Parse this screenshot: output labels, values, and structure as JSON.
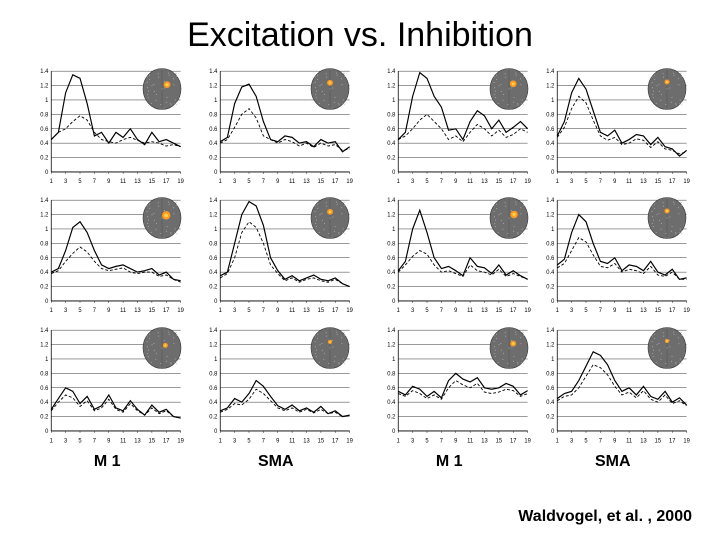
{
  "title": "Excitation vs. Inhibition",
  "citation": "Waldvogel, et al. , 2000",
  "column_labels": [
    "M 1",
    "SMA",
    "M 1",
    "SMA"
  ],
  "chart_common": {
    "ylim": [
      0,
      1.4
    ],
    "ytick_step": 0.2,
    "yticks": [
      "0",
      "0.2",
      "0.4",
      "0.6",
      "0.8",
      "1",
      "1.2",
      "1.4"
    ],
    "xlim": [
      1,
      19
    ],
    "xticks": [
      "1",
      "3",
      "5",
      "7",
      "9",
      "11",
      "13",
      "15",
      "17",
      "19"
    ],
    "axis_color": "#000000",
    "grid_color": "#000000",
    "background_color": "#ffffff",
    "solid_line": {
      "color": "#000000",
      "width": 1.2,
      "dash": "none"
    },
    "dashed_line": {
      "color": "#000000",
      "width": 0.9,
      "dash": "3,2"
    },
    "label_fontsize": 6
  },
  "brain_inset": {
    "bg": "#6d6d6d",
    "speckle": "#b8b8b8",
    "activation": "#ff9a1f",
    "activation_hot": "#ffd24a",
    "outline": "#3a3a3a"
  },
  "panels": [
    {
      "solid": [
        0.45,
        0.55,
        1.1,
        1.35,
        1.3,
        0.95,
        0.5,
        0.55,
        0.4,
        0.55,
        0.48,
        0.6,
        0.45,
        0.38,
        0.55,
        0.42,
        0.45,
        0.4,
        0.35
      ],
      "dashed": [
        0.45,
        0.55,
        0.6,
        0.7,
        0.78,
        0.72,
        0.55,
        0.45,
        0.42,
        0.4,
        0.45,
        0.48,
        0.44,
        0.4,
        0.42,
        0.4,
        0.36,
        0.38,
        0.35
      ],
      "activation_x": 0.62,
      "activation_y": 0.4,
      "activation_r": 0.08
    },
    {
      "solid": [
        0.42,
        0.48,
        0.95,
        1.18,
        1.22,
        1.05,
        0.7,
        0.45,
        0.42,
        0.5,
        0.48,
        0.4,
        0.42,
        0.35,
        0.45,
        0.4,
        0.42,
        0.28,
        0.35
      ],
      "dashed": [
        0.4,
        0.45,
        0.62,
        0.8,
        0.88,
        0.75,
        0.5,
        0.45,
        0.4,
        0.45,
        0.42,
        0.36,
        0.4,
        0.34,
        0.4,
        0.36,
        0.38,
        0.3,
        0.32
      ],
      "activation_x": 0.5,
      "activation_y": 0.36,
      "activation_r": 0.07
    },
    {
      "solid": [
        0.45,
        0.55,
        1.05,
        1.38,
        1.3,
        1.05,
        0.9,
        0.58,
        0.6,
        0.45,
        0.7,
        0.85,
        0.78,
        0.6,
        0.72,
        0.55,
        0.62,
        0.7,
        0.6
      ],
      "dashed": [
        0.45,
        0.5,
        0.6,
        0.72,
        0.8,
        0.7,
        0.6,
        0.45,
        0.5,
        0.42,
        0.55,
        0.66,
        0.6,
        0.5,
        0.58,
        0.48,
        0.52,
        0.6,
        0.55
      ],
      "activation_x": 0.6,
      "activation_y": 0.38,
      "activation_r": 0.08
    },
    {
      "solid": [
        0.5,
        0.7,
        1.1,
        1.3,
        1.15,
        0.85,
        0.55,
        0.5,
        0.58,
        0.4,
        0.45,
        0.52,
        0.5,
        0.38,
        0.48,
        0.35,
        0.32,
        0.22,
        0.3
      ],
      "dashed": [
        0.48,
        0.62,
        0.88,
        1.05,
        0.96,
        0.72,
        0.5,
        0.44,
        0.48,
        0.38,
        0.4,
        0.46,
        0.44,
        0.34,
        0.42,
        0.32,
        0.3,
        0.25,
        0.28
      ],
      "activation_x": 0.5,
      "activation_y": 0.34,
      "activation_r": 0.06
    },
    {
      "solid": [
        0.4,
        0.45,
        0.7,
        1.02,
        1.1,
        0.95,
        0.7,
        0.5,
        0.45,
        0.48,
        0.5,
        0.45,
        0.4,
        0.42,
        0.45,
        0.36,
        0.4,
        0.3,
        0.28
      ],
      "dashed": [
        0.38,
        0.42,
        0.55,
        0.66,
        0.75,
        0.68,
        0.55,
        0.45,
        0.42,
        0.44,
        0.46,
        0.4,
        0.38,
        0.4,
        0.4,
        0.34,
        0.36,
        0.3,
        0.26
      ],
      "activation_x": 0.6,
      "activation_y": 0.44,
      "activation_r": 0.1
    },
    {
      "solid": [
        0.35,
        0.4,
        0.8,
        1.2,
        1.38,
        1.32,
        1.05,
        0.6,
        0.42,
        0.3,
        0.35,
        0.28,
        0.32,
        0.36,
        0.3,
        0.28,
        0.32,
        0.24,
        0.2
      ],
      "dashed": [
        0.32,
        0.38,
        0.6,
        0.95,
        1.1,
        1.02,
        0.8,
        0.5,
        0.38,
        0.28,
        0.32,
        0.26,
        0.3,
        0.32,
        0.28,
        0.26,
        0.3,
        0.24,
        0.2
      ],
      "activation_x": 0.5,
      "activation_y": 0.36,
      "activation_r": 0.07
    },
    {
      "solid": [
        0.42,
        0.55,
        1.0,
        1.26,
        0.95,
        0.6,
        0.45,
        0.48,
        0.42,
        0.35,
        0.6,
        0.48,
        0.46,
        0.38,
        0.5,
        0.36,
        0.42,
        0.35,
        0.3
      ],
      "dashed": [
        0.4,
        0.5,
        0.62,
        0.7,
        0.65,
        0.5,
        0.4,
        0.42,
        0.38,
        0.34,
        0.5,
        0.42,
        0.4,
        0.36,
        0.44,
        0.34,
        0.38,
        0.34,
        0.3
      ],
      "activation_x": 0.62,
      "activation_y": 0.42,
      "activation_r": 0.09
    },
    {
      "solid": [
        0.5,
        0.58,
        0.95,
        1.2,
        1.1,
        0.8,
        0.55,
        0.52,
        0.6,
        0.42,
        0.5,
        0.48,
        0.42,
        0.55,
        0.4,
        0.36,
        0.44,
        0.3,
        0.32
      ],
      "dashed": [
        0.46,
        0.52,
        0.7,
        0.88,
        0.82,
        0.64,
        0.48,
        0.46,
        0.52,
        0.4,
        0.44,
        0.42,
        0.38,
        0.48,
        0.36,
        0.34,
        0.4,
        0.3,
        0.3
      ],
      "activation_x": 0.5,
      "activation_y": 0.34,
      "activation_r": 0.06
    },
    {
      "solid": [
        0.3,
        0.45,
        0.6,
        0.55,
        0.38,
        0.48,
        0.3,
        0.35,
        0.5,
        0.32,
        0.28,
        0.42,
        0.3,
        0.22,
        0.36,
        0.26,
        0.3,
        0.2,
        0.18
      ],
      "dashed": [
        0.28,
        0.4,
        0.5,
        0.46,
        0.34,
        0.42,
        0.28,
        0.32,
        0.44,
        0.3,
        0.26,
        0.38,
        0.28,
        0.22,
        0.32,
        0.24,
        0.28,
        0.2,
        0.18
      ],
      "activation_x": 0.58,
      "activation_y": 0.44,
      "activation_r": 0.06
    },
    {
      "solid": [
        0.28,
        0.32,
        0.45,
        0.4,
        0.52,
        0.7,
        0.62,
        0.48,
        0.35,
        0.3,
        0.36,
        0.28,
        0.32,
        0.26,
        0.34,
        0.24,
        0.28,
        0.2,
        0.22
      ],
      "dashed": [
        0.26,
        0.3,
        0.38,
        0.36,
        0.44,
        0.58,
        0.52,
        0.42,
        0.32,
        0.28,
        0.32,
        0.26,
        0.3,
        0.25,
        0.3,
        0.24,
        0.26,
        0.2,
        0.22
      ],
      "activation_x": 0.5,
      "activation_y": 0.36,
      "activation_r": 0.05
    },
    {
      "solid": [
        0.55,
        0.5,
        0.62,
        0.58,
        0.48,
        0.55,
        0.46,
        0.7,
        0.8,
        0.72,
        0.68,
        0.74,
        0.6,
        0.58,
        0.6,
        0.66,
        0.62,
        0.5,
        0.56
      ],
      "dashed": [
        0.52,
        0.48,
        0.56,
        0.52,
        0.45,
        0.5,
        0.44,
        0.6,
        0.7,
        0.64,
        0.6,
        0.66,
        0.54,
        0.52,
        0.54,
        0.58,
        0.56,
        0.48,
        0.52
      ],
      "activation_x": 0.6,
      "activation_y": 0.4,
      "activation_r": 0.07
    },
    {
      "solid": [
        0.45,
        0.52,
        0.55,
        0.7,
        0.9,
        1.1,
        1.05,
        0.92,
        0.7,
        0.55,
        0.6,
        0.5,
        0.62,
        0.48,
        0.44,
        0.55,
        0.4,
        0.46,
        0.36
      ],
      "dashed": [
        0.42,
        0.48,
        0.5,
        0.6,
        0.76,
        0.92,
        0.88,
        0.78,
        0.62,
        0.5,
        0.54,
        0.46,
        0.56,
        0.44,
        0.4,
        0.5,
        0.38,
        0.42,
        0.35
      ],
      "activation_x": 0.5,
      "activation_y": 0.34,
      "activation_r": 0.05
    }
  ]
}
